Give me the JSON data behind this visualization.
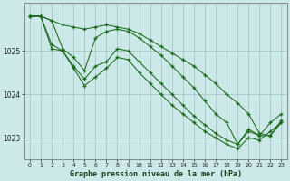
{
  "title": "Graphe pression niveau de la mer (hPa)",
  "background_color": "#cce8e8",
  "grid_color": "#aacccc",
  "line_color": "#1a6b1a",
  "xlim": [
    -0.5,
    23.5
  ],
  "ylim": [
    1022.5,
    1026.1
  ],
  "yticks": [
    1023,
    1024,
    1025
  ],
  "xtick_labels": [
    "0",
    "1",
    "2",
    "3",
    "4",
    "5",
    "6",
    "7",
    "8",
    "9",
    "10",
    "11",
    "12",
    "13",
    "14",
    "15",
    "16",
    "17",
    "18",
    "19",
    "20",
    "21",
    "22",
    "23"
  ],
  "series": [
    {
      "x": [
        0,
        1,
        2,
        3,
        4,
        5,
        6,
        7,
        8,
        9,
        10,
        11,
        12,
        13,
        14,
        15,
        16,
        17,
        18,
        19,
        20,
        21,
        22,
        23
      ],
      "y": [
        1025.8,
        1025.8,
        1025.7,
        1025.6,
        1025.55,
        1025.5,
        1025.55,
        1025.6,
        1025.55,
        1025.5,
        1025.4,
        1025.25,
        1025.1,
        1024.95,
        1024.8,
        1024.65,
        1024.45,
        1024.25,
        1024.0,
        1023.8,
        1023.55,
        1023.1,
        1023.05,
        1023.35
      ]
    },
    {
      "x": [
        0,
        1,
        2,
        3,
        4,
        5,
        6,
        7,
        8,
        9,
        10,
        11,
        12,
        13,
        14,
        15,
        16,
        17,
        18,
        19,
        20,
        21,
        22,
        23
      ],
      "y": [
        1025.8,
        1025.8,
        1025.7,
        1025.05,
        1024.85,
        1024.55,
        1025.3,
        1025.45,
        1025.5,
        1025.45,
        1025.3,
        1025.1,
        1024.9,
        1024.65,
        1024.4,
        1024.15,
        1023.85,
        1023.55,
        1023.35,
        1022.85,
        1023.2,
        1023.05,
        1023.05,
        1023.4
      ]
    },
    {
      "x": [
        0,
        1,
        2,
        3,
        4,
        5,
        6,
        7,
        8,
        9,
        10,
        11,
        12,
        13,
        14,
        15,
        16,
        17,
        18,
        19,
        20,
        21,
        22,
        23
      ],
      "y": [
        1025.8,
        1025.8,
        1025.05,
        1025.0,
        1024.65,
        1024.35,
        1024.65,
        1024.75,
        1025.05,
        1025.0,
        1024.75,
        1024.5,
        1024.25,
        1024.0,
        1023.75,
        1023.5,
        1023.3,
        1023.1,
        1022.95,
        1022.85,
        1023.15,
        1023.05,
        1023.35,
        1023.55
      ]
    },
    {
      "x": [
        0,
        1,
        2,
        3,
        4,
        5,
        6,
        7,
        8,
        9,
        10,
        11,
        12,
        13,
        14,
        15,
        16,
        17,
        18,
        19,
        20,
        21,
        22,
        23
      ],
      "y": [
        1025.8,
        1025.8,
        1025.15,
        1025.0,
        1024.6,
        1024.2,
        1024.4,
        1024.6,
        1024.85,
        1024.8,
        1024.5,
        1024.25,
        1024.0,
        1023.75,
        1023.55,
        1023.35,
        1023.15,
        1023.0,
        1022.85,
        1022.75,
        1023.0,
        1022.95,
        1023.15,
        1023.35
      ]
    }
  ]
}
